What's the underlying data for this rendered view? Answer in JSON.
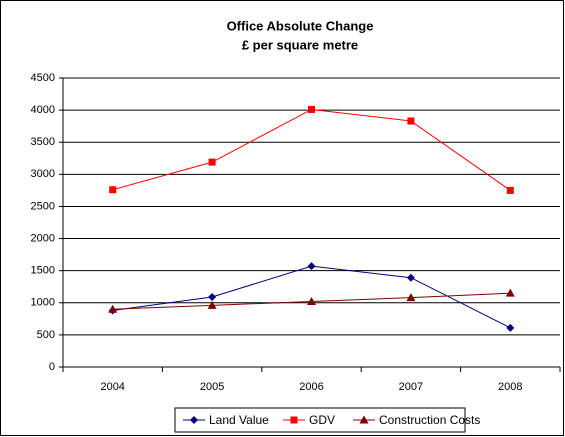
{
  "chart_data": {
    "type": "line",
    "title": "Office Absolute Change",
    "subtitle": "£ per square metre",
    "categories": [
      "2004",
      "2005",
      "2006",
      "2007",
      "2008"
    ],
    "series": [
      {
        "name": "Land Value",
        "color": "#000080",
        "marker": "diamond",
        "values": [
          880,
          1090,
          1570,
          1390,
          610
        ]
      },
      {
        "name": "GDV",
        "color": "#ff0000",
        "marker": "square",
        "values": [
          2760,
          3190,
          4010,
          3830,
          2750
        ]
      },
      {
        "name": "Construction Costs",
        "color": "#800000",
        "marker": "triangle",
        "values": [
          900,
          960,
          1020,
          1080,
          1150
        ]
      }
    ],
    "ylim": [
      0,
      4500
    ],
    "yticks": [
      0,
      500,
      1000,
      1500,
      2000,
      2500,
      3000,
      3500,
      4000,
      4500
    ],
    "grid": true,
    "legend": "bottom"
  }
}
